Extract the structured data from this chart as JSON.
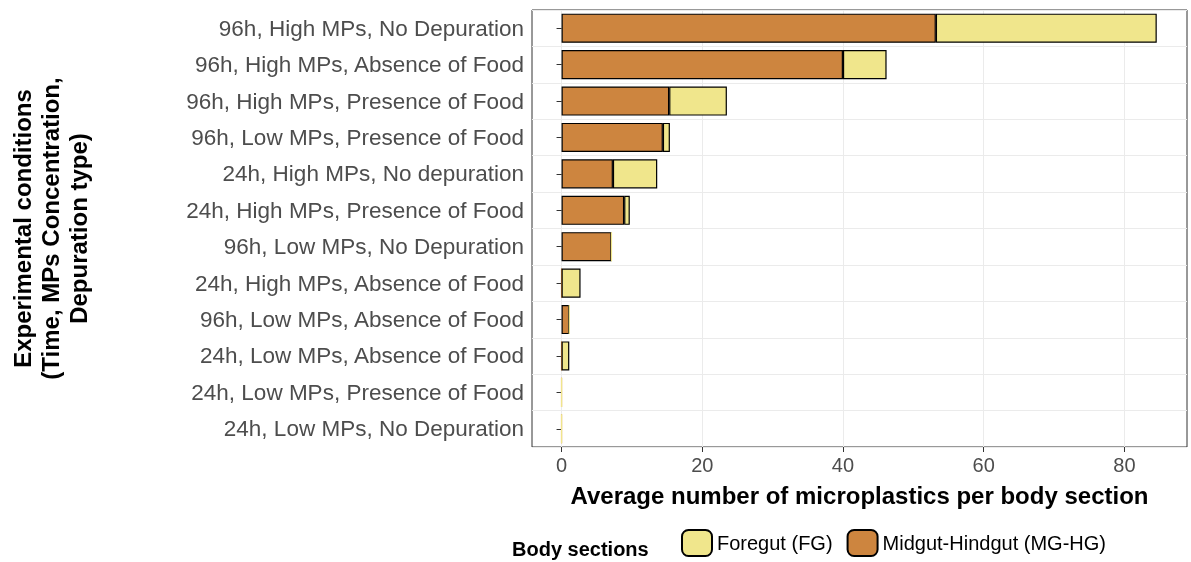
{
  "chart_data": {
    "type": "bar",
    "orientation": "horizontal",
    "stacked": true,
    "xlabel": "Average number of microplastics per body section",
    "ylabel": "Experimental conditions\n(Time, MPs Concentration,\nDepuration type)",
    "legend_title": "Body sections",
    "legend": "bottom",
    "grid": true,
    "categories": [
      "96h, High MPs, No Depuration",
      "96h, High MPs, Absence of Food",
      "96h, High MPs, Presence of Food",
      "96h, Low MPs, Presence of Food",
      "24h, High MPs, No depuration",
      "24h, High MPs, Presence of Food",
      "96h, Low MPs, No Depuration",
      "24h, High MPs, Absence of Food",
      "96h, Low MPs, Absence of Food",
      "24h, Low MPs, Absence of Food",
      "24h, Low MPs, Presence of Food",
      "24h, Low MPs, No Depuration"
    ],
    "series": [
      {
        "name": "Midgut-Hindgut (MG-HG)",
        "color": "#cd853f",
        "values": [
          53.2,
          40.0,
          15.3,
          14.4,
          7.3,
          8.9,
          7.1,
          0,
          1.1,
          0,
          0,
          0
        ]
      },
      {
        "name": "Foregut (FG)",
        "color": "#f0e68c",
        "values": [
          31.4,
          6.2,
          8.2,
          1.0,
          6.3,
          0.8,
          0,
          2.7,
          0,
          1.1,
          0,
          0
        ]
      }
    ],
    "xlim": [
      -4.2,
      88.9
    ],
    "xticks": [
      0,
      20,
      40,
      60,
      80
    ]
  }
}
